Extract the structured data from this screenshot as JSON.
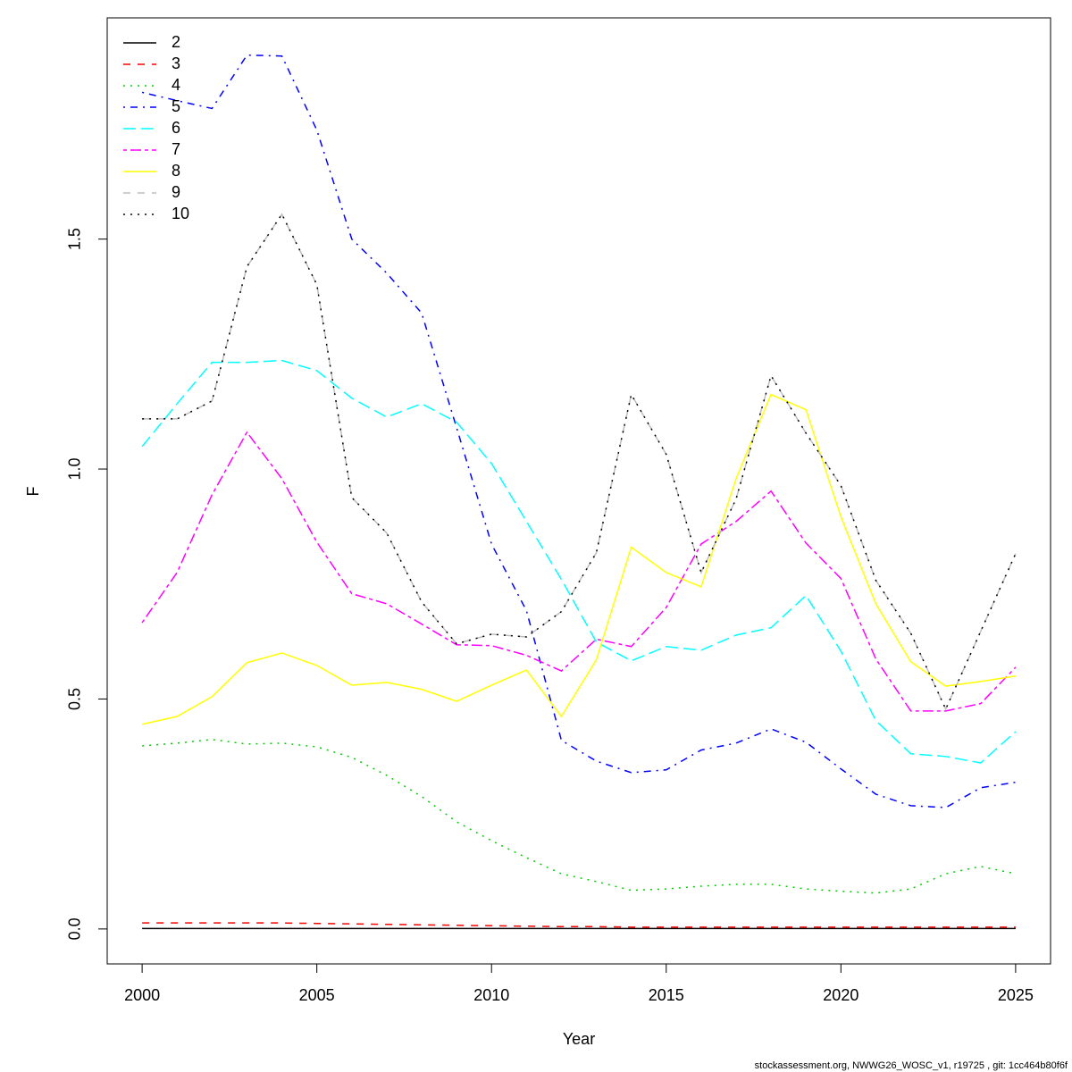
{
  "chart_data": {
    "type": "line",
    "xlabel": "Year",
    "ylabel": "F",
    "footer": "stockassessment.org, NWWG26_WOSC_v1, r19725 , git: 1cc464b80f6f",
    "x": [
      2000,
      2001,
      2002,
      2003,
      2004,
      2005,
      2006,
      2007,
      2008,
      2009,
      2010,
      2011,
      2012,
      2013,
      2014,
      2015,
      2016,
      2017,
      2018,
      2019,
      2020,
      2021,
      2022,
      2023,
      2024,
      2025
    ],
    "xlim": [
      1999,
      2026
    ],
    "xticks": [
      2000,
      2005,
      2010,
      2015,
      2020,
      2025
    ],
    "ylim": [
      -0.076,
      1.981
    ],
    "yticks": [
      {
        "value": 0,
        "label": "0.0"
      },
      0.5,
      {
        "value": 1,
        "label": "1.0"
      },
      1.5
    ],
    "legend": "top-left",
    "series": [
      {
        "name": "2",
        "color": "#000000",
        "dash": "solid",
        "values": [
          0.001,
          0.001,
          0.001,
          0.001,
          0.001,
          0.001,
          0.001,
          0.001,
          0.001,
          0.001,
          0.001,
          0.001,
          0.001,
          0.001,
          0.001,
          0.001,
          0.001,
          0.001,
          0.001,
          0.001,
          0.001,
          0.001,
          0.001,
          0.001,
          0.001,
          0.001
        ]
      },
      {
        "name": "3",
        "color": "#ff0000",
        "dash": "dashed",
        "values": [
          0.013,
          0.013,
          0.013,
          0.013,
          0.013,
          0.012,
          0.011,
          0.01,
          0.009,
          0.008,
          0.007,
          0.006,
          0.005,
          0.005,
          0.004,
          0.004,
          0.004,
          0.004,
          0.004,
          0.004,
          0.004,
          0.004,
          0.004,
          0.004,
          0.004,
          0.004
        ]
      },
      {
        "name": "4",
        "color": "#00cd00",
        "dash": "dotted",
        "values": [
          0.398,
          0.404,
          0.412,
          0.402,
          0.404,
          0.396,
          0.373,
          0.334,
          0.288,
          0.233,
          0.192,
          0.155,
          0.12,
          0.103,
          0.084,
          0.087,
          0.093,
          0.097,
          0.097,
          0.087,
          0.082,
          0.078,
          0.087,
          0.12,
          0.136,
          0.12
        ]
      },
      {
        "name": "5",
        "color": "#0000ff",
        "dash": "dotdash",
        "values": [
          1.819,
          1.801,
          1.784,
          1.9,
          1.898,
          1.737,
          1.5,
          1.426,
          1.339,
          1.09,
          0.837,
          0.692,
          0.41,
          0.365,
          0.34,
          0.346,
          0.389,
          0.404,
          0.435,
          0.406,
          0.348,
          0.293,
          0.268,
          0.264,
          0.307,
          0.319
        ]
      },
      {
        "name": "6",
        "color": "#00ffff",
        "dash": "longdash",
        "values": [
          1.049,
          1.142,
          1.232,
          1.232,
          1.236,
          1.214,
          1.154,
          1.113,
          1.142,
          1.102,
          1.012,
          0.886,
          0.76,
          0.624,
          0.583,
          0.614,
          0.606,
          0.639,
          0.655,
          0.725,
          0.604,
          0.453,
          0.381,
          0.375,
          0.361,
          0.429
        ]
      },
      {
        "name": "7",
        "color": "#ff00ff",
        "dash": "twodash",
        "values": [
          0.666,
          0.775,
          0.944,
          1.08,
          0.979,
          0.841,
          0.729,
          0.707,
          0.663,
          0.618,
          0.616,
          0.595,
          0.561,
          0.63,
          0.614,
          0.699,
          0.837,
          0.886,
          0.952,
          0.839,
          0.762,
          0.587,
          0.474,
          0.474,
          0.49,
          0.569
        ]
      },
      {
        "name": "8",
        "color": "#ffff00",
        "dash": "solid",
        "values": [
          0.445,
          0.462,
          0.505,
          0.579,
          0.6,
          0.573,
          0.53,
          0.536,
          0.521,
          0.495,
          0.53,
          0.563,
          0.462,
          0.585,
          0.83,
          0.775,
          0.744,
          0.979,
          1.162,
          1.129,
          0.896,
          0.707,
          0.581,
          0.528,
          0.538,
          0.55
        ]
      },
      {
        "name": "9",
        "color": "#bebebe",
        "dash": "dashed",
        "values": [
          1.109,
          1.109,
          1.148,
          1.44,
          1.554,
          1.401,
          0.938,
          0.861,
          0.711,
          0.62,
          0.641,
          0.635,
          0.69,
          0.818,
          1.162,
          1.032,
          0.775,
          0.935,
          1.203,
          1.078,
          0.964,
          0.758,
          0.643,
          0.478,
          0.647,
          0.816
        ]
      },
      {
        "name": "10",
        "color": "#000000",
        "dash": "dotted",
        "values": [
          1.109,
          1.109,
          1.148,
          1.44,
          1.554,
          1.401,
          0.938,
          0.861,
          0.711,
          0.62,
          0.641,
          0.635,
          0.69,
          0.818,
          1.162,
          1.032,
          0.775,
          0.935,
          1.203,
          1.078,
          0.964,
          0.758,
          0.643,
          0.478,
          0.647,
          0.816
        ]
      }
    ]
  }
}
